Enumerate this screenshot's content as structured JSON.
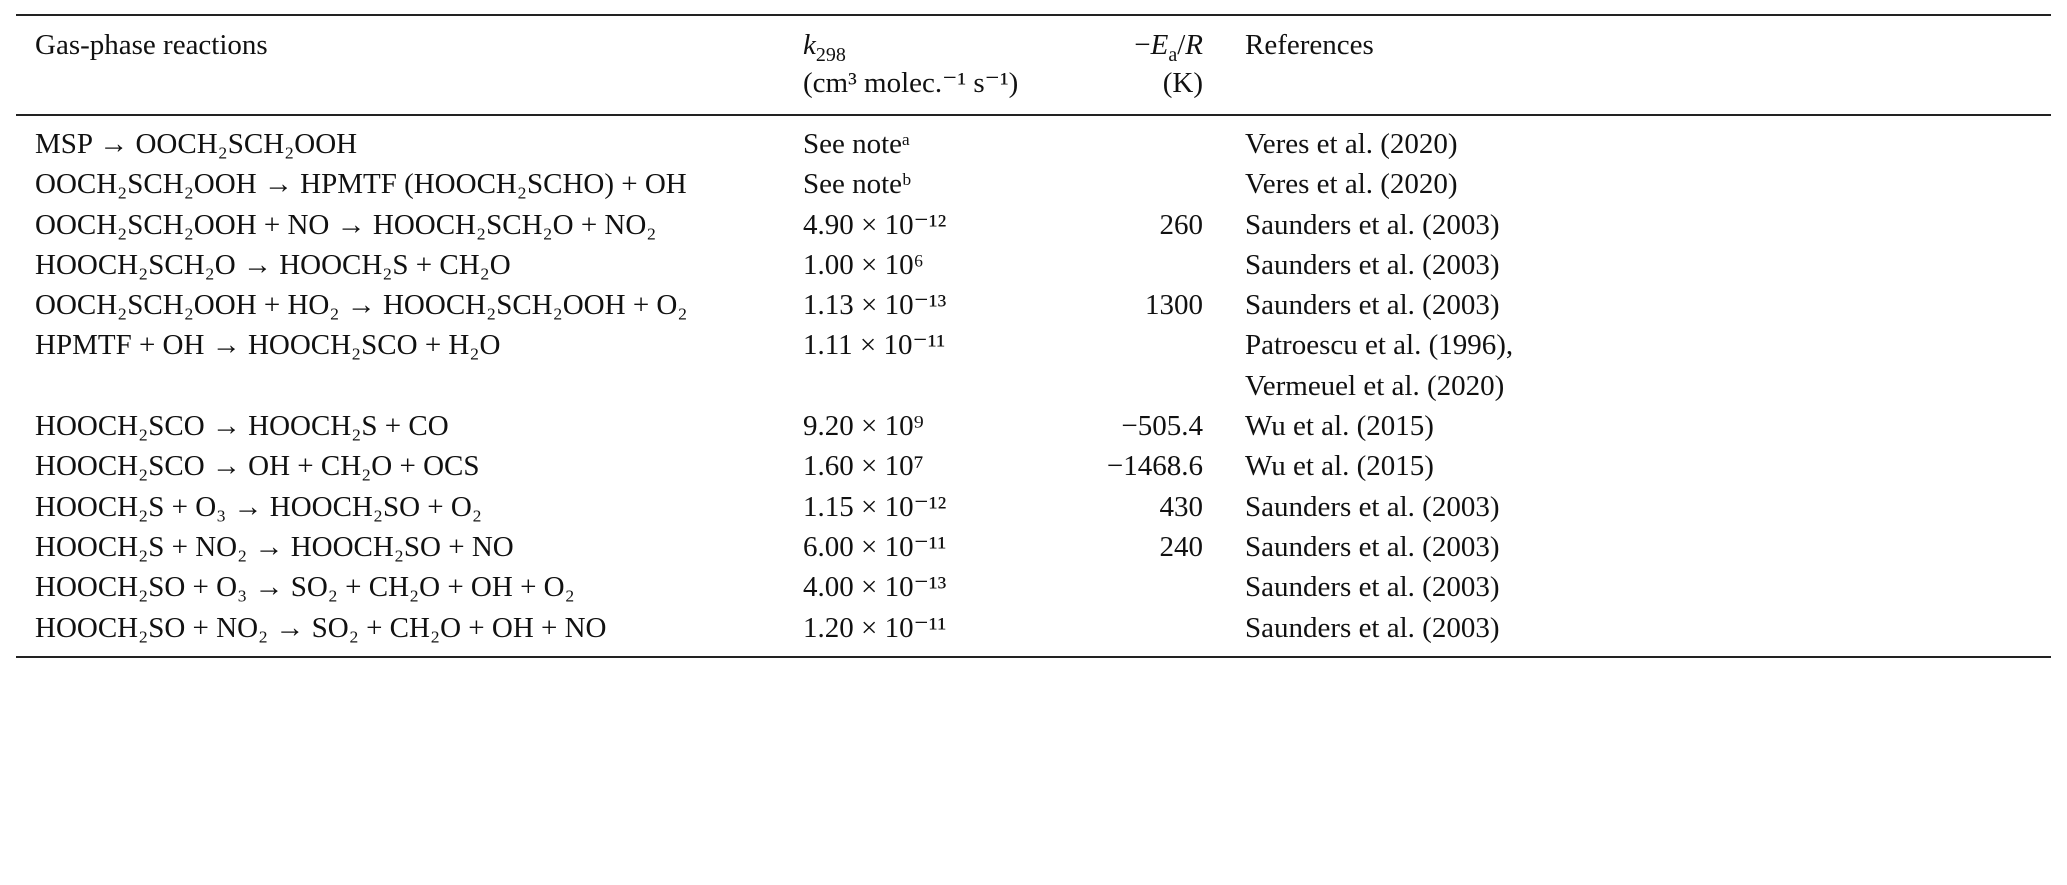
{
  "table": {
    "headers": {
      "reaction": "Gas-phase reactions",
      "k298_symbol": "k",
      "k298_sub": "298",
      "k298_unit": "(cm³ molec.⁻¹ s⁻¹)",
      "ea_prefix": "−",
      "ea_E": "E",
      "ea_sub": "a",
      "ea_slash": "/",
      "ea_R": "R",
      "ea_unit": "(K)",
      "references": "References"
    },
    "rows": [
      {
        "reaction": "MSP → OOCH₂SCH₂OOH",
        "k298": "See noteᵃ",
        "ea": "",
        "ref": "Veres et al. (2020)"
      },
      {
        "reaction": "OOCH₂SCH₂OOH → HPMTF (HOOCH₂SCHO) + OH",
        "k298": "See noteᵇ",
        "ea": "",
        "ref": "Veres et al. (2020)"
      },
      {
        "reaction": "OOCH₂SCH₂OOH + NO → HOOCH₂SCH₂O + NO₂",
        "k298": "4.90 × 10⁻¹²",
        "ea": "260",
        "ref": "Saunders et al. (2003)"
      },
      {
        "reaction": "HOOCH₂SCH₂O → HOOCH₂S + CH₂O",
        "k298": "1.00 × 10⁶",
        "ea": "",
        "ref": "Saunders et al. (2003)"
      },
      {
        "reaction": "OOCH₂SCH₂OOH + HO₂ → HOOCH₂SCH₂OOH + O₂",
        "k298": "1.13 × 10⁻¹³",
        "ea": "1300",
        "ref": "Saunders et al. (2003)"
      },
      {
        "reaction": "HPMTF + OH → HOOCH₂SCO + H₂O",
        "k298": "1.11 × 10⁻¹¹",
        "ea": "",
        "ref": "Patroescu et al. (1996),"
      },
      {
        "reaction": "",
        "k298": "",
        "ea": "",
        "ref": "Vermeuel et al. (2020)"
      },
      {
        "reaction": "HOOCH₂SCO → HOOCH₂S + CO",
        "k298": "9.20 × 10⁹",
        "ea": "−505.4",
        "ref": "Wu et al. (2015)"
      },
      {
        "reaction": "HOOCH₂SCO → OH + CH₂O + OCS",
        "k298": "1.60 × 10⁷",
        "ea": "−1468.6",
        "ref": "Wu et al. (2015)"
      },
      {
        "reaction": "HOOCH₂S + O₃ → HOOCH₂SO + O₂",
        "k298": "1.15 × 10⁻¹²",
        "ea": "430",
        "ref": "Saunders et al. (2003)"
      },
      {
        "reaction": "HOOCH₂S + NO₂ → HOOCH₂SO + NO",
        "k298": "6.00 × 10⁻¹¹",
        "ea": "240",
        "ref": "Saunders et al. (2003)"
      },
      {
        "reaction": "HOOCH₂SO + O₃ → SO₂ + CH₂O + OH + O₂",
        "k298": "4.00 × 10⁻¹³",
        "ea": "",
        "ref": "Saunders et al. (2003)"
      },
      {
        "reaction": "HOOCH₂SO + NO₂ → SO₂ + CH₂O + OH + NO",
        "k298": "1.20 × 10⁻¹¹",
        "ea": "",
        "ref": "Saunders et al. (2003)"
      }
    ]
  }
}
